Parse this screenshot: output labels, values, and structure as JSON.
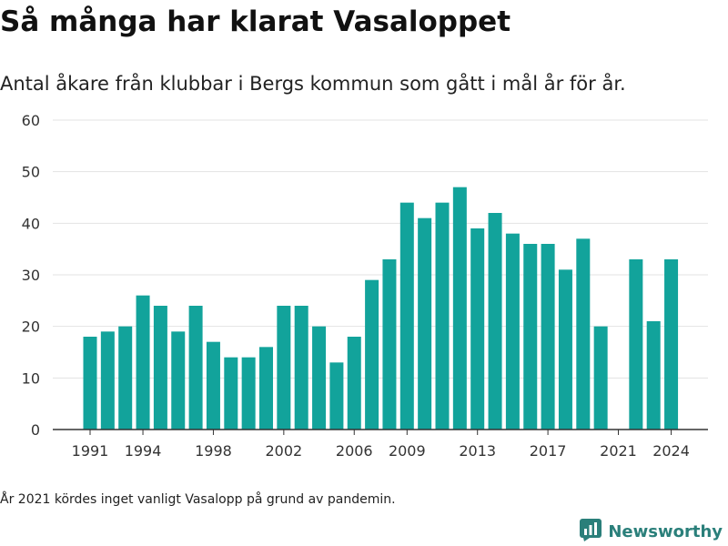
{
  "page": {
    "title": "Så många har klarat Vasaloppet",
    "subtitle": "Antal åkare från klubbar i Bergs kommun som gått i mål år för år.",
    "footnote": "År 2021 kördes inget vanligt Vasalopp på grund av pandemin.",
    "brand": "Newsworthy"
  },
  "colors": {
    "bar": "#12a39b",
    "grid": "#e3e3e3",
    "axis": "#333333",
    "brand": "#2a7f7a"
  },
  "icons": {
    "brand_logo": "bar-chart-logo-icon"
  },
  "chart_data": {
    "type": "bar",
    "categories": [
      1991,
      1992,
      1993,
      1994,
      1995,
      1996,
      1997,
      1998,
      1999,
      2000,
      2001,
      2002,
      2003,
      2004,
      2005,
      2006,
      2007,
      2008,
      2009,
      2010,
      2011,
      2012,
      2013,
      2014,
      2015,
      2016,
      2017,
      2018,
      2019,
      2020,
      2021,
      2022,
      2023,
      2024
    ],
    "values": [
      18,
      19,
      20,
      26,
      24,
      19,
      24,
      17,
      14,
      14,
      16,
      24,
      24,
      20,
      13,
      18,
      29,
      33,
      44,
      41,
      44,
      47,
      39,
      42,
      38,
      36,
      36,
      31,
      37,
      20,
      null,
      33,
      21,
      33
    ],
    "x_tick_labels": [
      1991,
      1994,
      1998,
      2002,
      2006,
      2009,
      2013,
      2017,
      2021,
      2024
    ],
    "y_ticks": [
      0,
      10,
      20,
      30,
      40,
      50,
      60
    ],
    "ylim": [
      0,
      60
    ],
    "grid": true,
    "legend": "none"
  }
}
